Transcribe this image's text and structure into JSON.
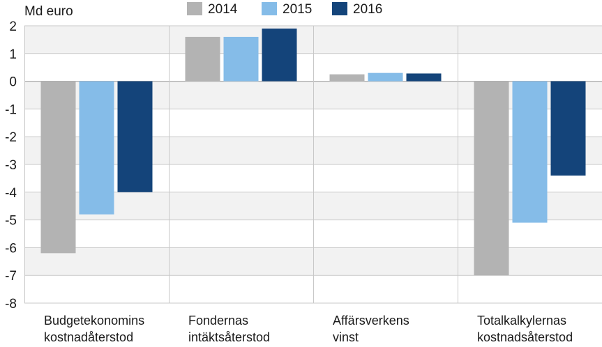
{
  "chart_data": {
    "type": "bar",
    "unit_label": "Md euro",
    "categories": [
      [
        "Budgetekonomins",
        "kostnadåterstod"
      ],
      [
        "Fondernas",
        "intäktsåterstod"
      ],
      [
        "Affärsverkens",
        "vinst"
      ],
      [
        "Totalkalkylernas",
        "kostnadsåterstod"
      ]
    ],
    "series": [
      {
        "name": "2014",
        "color": "#b3b3b3",
        "values": [
          -6.2,
          1.6,
          0.25,
          -7.0
        ]
      },
      {
        "name": "2015",
        "color": "#85bce8",
        "values": [
          -4.8,
          1.6,
          0.3,
          -5.1
        ]
      },
      {
        "name": "2016",
        "color": "#14447a",
        "values": [
          -4.0,
          1.9,
          0.28,
          -3.4
        ]
      }
    ],
    "ylim": [
      -8,
      2
    ],
    "yticks": [
      "2",
      "1",
      "0",
      "-1",
      "-2",
      "-3",
      "-4",
      "-5",
      "-6",
      "-7",
      "-8"
    ],
    "grid": true,
    "band_colors": [
      "#f2f2f2",
      "#ffffff"
    ],
    "legend_position": "top"
  }
}
